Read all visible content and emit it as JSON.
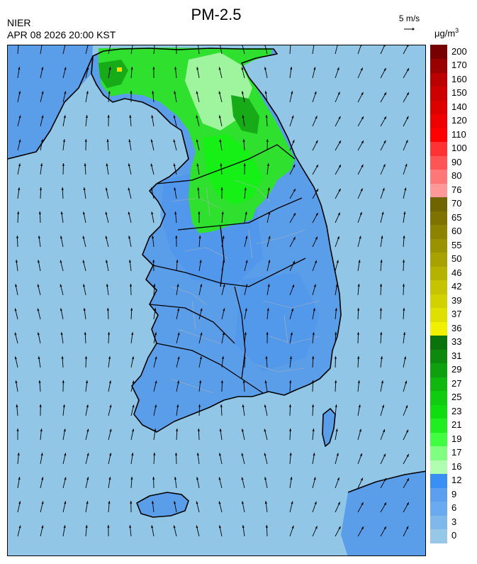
{
  "title": "PM-2.5",
  "organization": "NIER",
  "datetime": "APR 08 2026 20:00 KST",
  "wind_reference": {
    "label": "5 m/s",
    "icon": "arrow-right-icon"
  },
  "legend": {
    "unit": "μg/m",
    "unit_sup": "3",
    "colors": [
      "#98c8e8",
      "#7fb8ea",
      "#6aaaf0",
      "#5c9ef0",
      "#3a90f2",
      "#b0ffb0",
      "#80ff80",
      "#40ff40",
      "#20ee20",
      "#10dd10",
      "#10cc10",
      "#0fb70f",
      "#0ea00e",
      "#0d8a0d",
      "#0b730b",
      "#f0f000",
      "#e0e000",
      "#d2d200",
      "#c6c400",
      "#b6b200",
      "#a8a200",
      "#9a9300",
      "#8c8300",
      "#7e7300",
      "#706400",
      "#ff9999",
      "#ff7777",
      "#ff5555",
      "#ff3333",
      "#ff0000",
      "#ee0000",
      "#dd0000",
      "#cc0000",
      "#bb0000",
      "#990000",
      "#770000"
    ],
    "labels": [
      "0",
      "3",
      "6",
      "9",
      "12",
      "16",
      "17",
      "19",
      "21",
      "23",
      "25",
      "27",
      "29",
      "31",
      "33",
      "36",
      "37",
      "39",
      "42",
      "46",
      "50",
      "55",
      "60",
      "65",
      "70",
      "76",
      "80",
      "90",
      "100",
      "110",
      "120",
      "140",
      "150",
      "160",
      "170",
      "200"
    ]
  },
  "map_colors": {
    "sea": "#92c6e6",
    "land_low": "#5a9eea",
    "land_mid": "#4a94ee",
    "green_light": "#9ef59e",
    "green": "#2fe02f",
    "green_bright": "#16f016",
    "green_dark": "#17ab17",
    "hotspot": "#f0e000",
    "boundary": "#000000",
    "district": "#b0b0b0",
    "arrow": "#000000"
  }
}
